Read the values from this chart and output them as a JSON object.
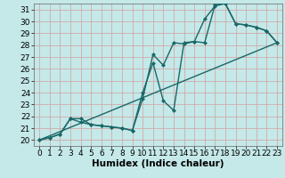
{
  "xlabel": "Humidex (Indice chaleur)",
  "background_color": "#c5e8e8",
  "grid_color": "#d4a0a0",
  "line_color": "#1a6868",
  "xlim": [
    -0.5,
    23.5
  ],
  "ylim": [
    19.5,
    31.5
  ],
  "xticks": [
    0,
    1,
    2,
    3,
    4,
    5,
    6,
    7,
    8,
    9,
    10,
    11,
    12,
    13,
    14,
    15,
    16,
    17,
    18,
    19,
    20,
    21,
    22,
    23
  ],
  "yticks": [
    20,
    21,
    22,
    23,
    24,
    25,
    26,
    27,
    28,
    29,
    30,
    31
  ],
  "line1_x": [
    0,
    1,
    2,
    3,
    4,
    5,
    6,
    7,
    8,
    9,
    10,
    11,
    12,
    13,
    14,
    15,
    16,
    17,
    18,
    19,
    20,
    21,
    22,
    23
  ],
  "line1_y": [
    20,
    20.2,
    20.5,
    21.8,
    21.5,
    21.3,
    21.2,
    21.1,
    21.0,
    20.8,
    23.5,
    27.2,
    26.3,
    28.2,
    28.1,
    28.3,
    30.2,
    31.3,
    31.5,
    29.8,
    29.7,
    29.5,
    29.2,
    28.2
  ],
  "line2_x": [
    0,
    1,
    2,
    3,
    4,
    5,
    6,
    7,
    8,
    9,
    10,
    11,
    12,
    13,
    14,
    15,
    16,
    17,
    18,
    19,
    20,
    21,
    22,
    23
  ],
  "line2_y": [
    20,
    20.2,
    20.5,
    21.8,
    21.8,
    21.3,
    21.2,
    21.1,
    21.0,
    20.8,
    24.0,
    26.5,
    23.3,
    22.5,
    28.2,
    28.3,
    28.2,
    31.4,
    31.5,
    29.8,
    29.7,
    29.5,
    29.2,
    28.2
  ],
  "line3_x": [
    0,
    23
  ],
  "line3_y": [
    20,
    28.2
  ],
  "marker_size": 2.5,
  "line_width": 1.0,
  "font_size": 6.5
}
